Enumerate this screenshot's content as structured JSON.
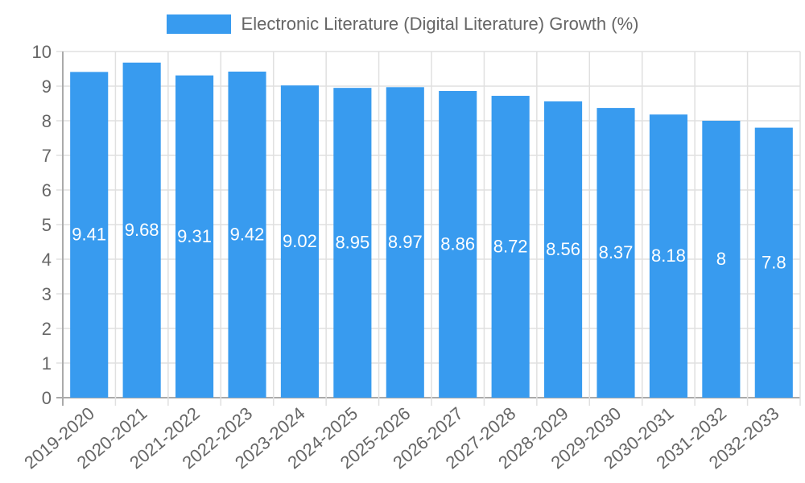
{
  "chart_data": {
    "type": "bar",
    "title": "",
    "legend": [
      "Electronic Literature (Digital Literature) Growth (%)"
    ],
    "legend_position": "top",
    "xlabel": "",
    "ylabel": "",
    "ylim": [
      0,
      10
    ],
    "yticks": [
      0,
      1,
      2,
      3,
      4,
      5,
      6,
      7,
      8,
      9,
      10
    ],
    "grid": true,
    "categories": [
      "2019-2020",
      "2020-2021",
      "2021-2022",
      "2022-2023",
      "2023-2024",
      "2024-2025",
      "2025-2026",
      "2026-2027",
      "2027-2028",
      "2028-2029",
      "2029-2030",
      "2030-2031",
      "2031-2032",
      "2032-2033"
    ],
    "series": [
      {
        "name": "Electronic Literature (Digital Literature) Growth (%)",
        "color": "#389BEF",
        "values": [
          9.41,
          9.68,
          9.31,
          9.42,
          9.02,
          8.95,
          8.97,
          8.86,
          8.72,
          8.56,
          8.37,
          8.18,
          8,
          7.8
        ]
      }
    ]
  },
  "legend": {
    "label": "Electronic Literature (Digital Literature) Growth (%)",
    "color": "#389BEF"
  }
}
